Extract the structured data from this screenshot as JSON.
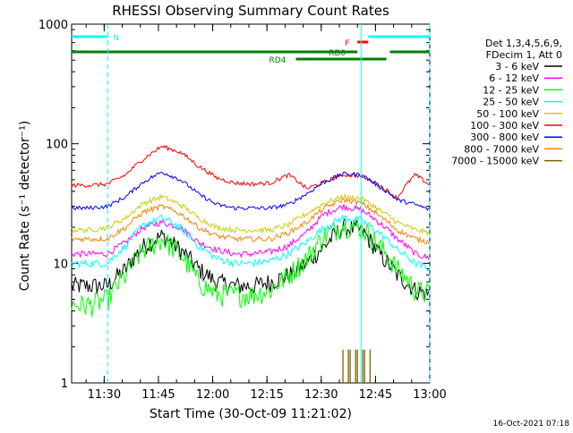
{
  "chart_data": {
    "type": "line",
    "title": "RHESSI Observing Summary Count Rates",
    "xlabel": "Start Time (30-Oct-09 11:21:02)",
    "ylabel": "Count Rate (s⁻¹ detector⁻¹)",
    "y_scale": "log",
    "ylim": [
      1,
      1000
    ],
    "xlim_minutes_after_1121": [
      0,
      99
    ],
    "x_ticks": [
      "11:30",
      "11:45",
      "12:00",
      "12:15",
      "12:30",
      "12:45",
      "13:00"
    ],
    "y_ticks": [
      "1",
      "10",
      "100",
      "1000"
    ],
    "legend_header": [
      "Det 1,3,4,5,6,9,",
      "FDecim 1, Att 0"
    ],
    "legend_position": "right",
    "series": [
      {
        "name": "3 - 6 keV",
        "color": "#000000",
        "x": [
          0,
          5,
          10,
          15,
          20,
          25,
          30,
          35,
          40,
          45,
          50,
          55,
          60,
          65,
          70,
          75,
          80,
          85,
          90,
          95,
          99
        ],
        "values": [
          6.5,
          6.5,
          6.5,
          9,
          14,
          17,
          13,
          9,
          7,
          6.5,
          6.5,
          7,
          8,
          10,
          14,
          20,
          19,
          12,
          8,
          6,
          5.5
        ]
      },
      {
        "name": "6 - 12 keV",
        "color": "#ff00ff",
        "x": [
          0,
          5,
          10,
          15,
          20,
          25,
          30,
          35,
          40,
          45,
          50,
          55,
          60,
          65,
          70,
          75,
          80,
          85,
          90,
          95,
          99
        ],
        "values": [
          12,
          12,
          12,
          15,
          20,
          22,
          20,
          15,
          13,
          12,
          12,
          12.5,
          14,
          18,
          26,
          30,
          28,
          22,
          16,
          12,
          11
        ]
      },
      {
        "name": "12 - 25 keV",
        "color": "#00ff00",
        "x": [
          0,
          5,
          10,
          15,
          20,
          25,
          30,
          35,
          40,
          45,
          50,
          55,
          60,
          65,
          70,
          75,
          80,
          85,
          90,
          95,
          99
        ],
        "values": [
          4.5,
          4.5,
          5,
          8,
          13,
          16,
          12,
          7,
          5.5,
          5.5,
          5.5,
          6,
          8,
          11,
          17,
          21,
          20,
          14,
          9,
          6,
          5.5
        ]
      },
      {
        "name": "25 - 50 keV",
        "color": "#00ffff",
        "x": [
          0,
          5,
          10,
          15,
          20,
          25,
          30,
          35,
          40,
          45,
          50,
          55,
          60,
          65,
          70,
          75,
          80,
          85,
          90,
          95,
          99
        ],
        "values": [
          10,
          10,
          10,
          14,
          21,
          24,
          20,
          14,
          11,
          10,
          10,
          10.5,
          12,
          15,
          20,
          24,
          23,
          18,
          13,
          10,
          9
        ]
      },
      {
        "name": "50 - 100 keV",
        "color": "#cccc00",
        "x": [
          0,
          5,
          10,
          15,
          20,
          25,
          30,
          35,
          40,
          45,
          50,
          55,
          60,
          65,
          70,
          75,
          80,
          85,
          90,
          95,
          99
        ],
        "values": [
          19,
          19,
          20,
          24,
          32,
          36,
          31,
          24,
          20,
          19,
          19,
          19,
          21,
          26,
          32,
          36,
          35,
          28,
          22,
          19,
          18
        ]
      },
      {
        "name": "100 - 300 keV",
        "color": "#ff0000",
        "x": [
          0,
          5,
          10,
          15,
          20,
          25,
          30,
          35,
          40,
          45,
          50,
          55,
          60,
          65,
          70,
          75,
          80,
          85,
          90,
          95,
          99
        ],
        "values": [
          45,
          45,
          46,
          55,
          75,
          95,
          85,
          65,
          52,
          47,
          46,
          47,
          55,
          42,
          48,
          55,
          54,
          45,
          35,
          55,
          45
        ]
      },
      {
        "name": "300 - 800 keV",
        "color": "#0000ff",
        "x": [
          0,
          5,
          10,
          15,
          20,
          25,
          30,
          35,
          40,
          45,
          50,
          55,
          60,
          65,
          70,
          75,
          80,
          85,
          90,
          95,
          99
        ],
        "values": [
          29,
          29,
          30,
          36,
          48,
          58,
          50,
          38,
          31,
          29,
          29,
          29,
          31,
          38,
          48,
          56,
          55,
          44,
          34,
          31,
          28
        ]
      },
      {
        "name": "800 - 7000 keV",
        "color": "#ff8000",
        "x": [
          0,
          5,
          10,
          15,
          20,
          25,
          30,
          35,
          40,
          45,
          50,
          55,
          60,
          65,
          70,
          75,
          80,
          85,
          90,
          95,
          99
        ],
        "values": [
          16,
          16,
          16,
          20,
          27,
          30,
          26,
          20,
          17,
          16,
          16,
          16,
          18,
          22,
          29,
          34,
          32,
          25,
          19,
          16,
          15
        ]
      },
      {
        "name": "7000 - 15000 keV",
        "color": "#806000",
        "x": [
          75,
          76,
          77,
          78,
          79,
          80,
          81,
          82
        ],
        "values": [
          1.9,
          1.9,
          1.9,
          1.9,
          1.9,
          1.9,
          1.9,
          1.9
        ]
      }
    ],
    "flags": [
      {
        "label": "N",
        "color": "#00ffff",
        "segments": [
          [
            0,
            10
          ]
        ]
      },
      {
        "label": "F",
        "color": "#ff0000",
        "segments": [
          [
            79,
            82
          ]
        ]
      },
      {
        "label": "RD0",
        "color": "#008000",
        "segments": [
          [
            0,
            79
          ],
          [
            88,
            99
          ]
        ]
      },
      {
        "label": "RD4",
        "color": "#008000",
        "segments": [
          [
            62,
            87
          ]
        ]
      },
      {
        "label": "",
        "color": "#00ffff",
        "segments": [
          [
            82,
            99
          ]
        ]
      }
    ],
    "vertical_markers": [
      {
        "x": 10,
        "color": "#00ffff",
        "style": "dashed"
      },
      {
        "x": 80,
        "color": "#00ffff",
        "style": "solid"
      },
      {
        "x": 99,
        "color": "#00ffff",
        "style": "dashed"
      }
    ]
  },
  "footer_timestamp": "16-Oct-2021 07:18"
}
